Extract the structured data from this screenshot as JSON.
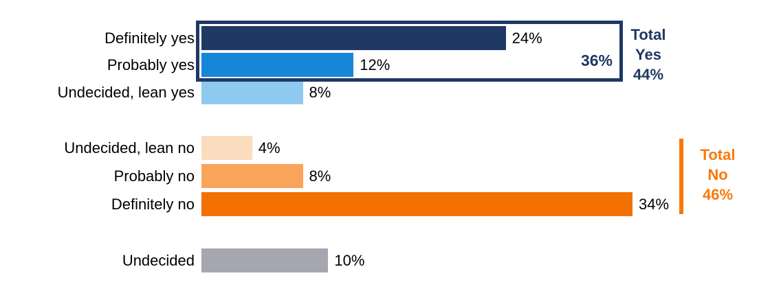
{
  "chart_data": {
    "type": "bar",
    "orientation": "horizontal",
    "title": "",
    "xlabel": "",
    "ylabel": "",
    "xlim": [
      0,
      44
    ],
    "grid": false,
    "legend": "none",
    "categories": [
      "Definitely yes",
      "Probably yes",
      "Undecided, lean yes",
      "Undecided, lean no",
      "Probably no",
      "Definitely no",
      "Undecided"
    ],
    "values": [
      24,
      12,
      8,
      4,
      8,
      34,
      10
    ],
    "value_labels": [
      "24%",
      "12%",
      "8%",
      "4%",
      "8%",
      "34%",
      "10%"
    ],
    "bar_colors": [
      "#1F3864",
      "#1686D8",
      "#8EC9F0",
      "#FCDCBE",
      "#F9A45B",
      "#F27102",
      "#A6A6B0"
    ],
    "groups": [
      {
        "name": "yes",
        "rows": [
          0,
          1,
          2
        ]
      },
      {
        "name": "no",
        "rows": [
          3,
          4,
          5
        ]
      },
      {
        "name": "undecided",
        "rows": [
          6
        ]
      }
    ],
    "annotations": {
      "yes_box_total": {
        "text": "36%",
        "color": "#1F3864",
        "note": "box drawn around Definitely yes and Probably yes bars"
      },
      "total_yes": {
        "line1": "Total",
        "line2": "Yes",
        "line3": "44%",
        "color": "#1F3864"
      },
      "total_no": {
        "line1": "Total",
        "line2": "No",
        "line3": "46%",
        "color": "#F8790B"
      }
    }
  }
}
